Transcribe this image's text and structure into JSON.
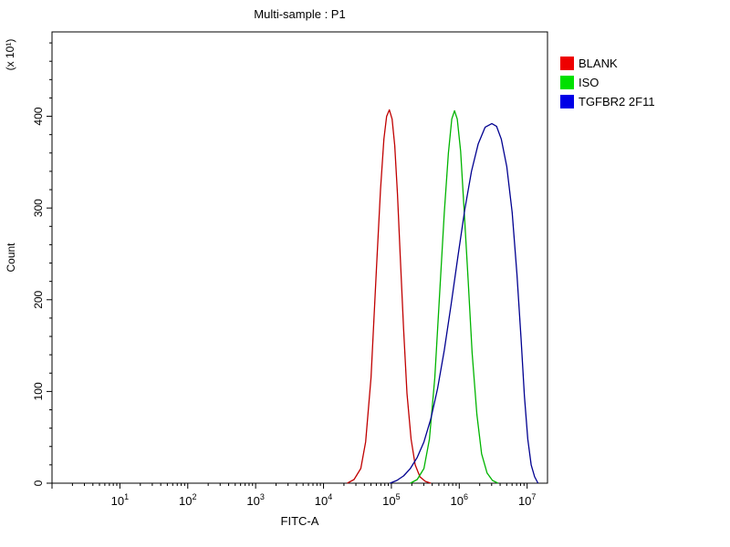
{
  "window": {
    "title": "Multi-sample : P1"
  },
  "chart_data": {
    "type": "line",
    "title": "Multi-sample : P1",
    "xlabel": "FITC-A",
    "ylabel": "Count",
    "y_multiplier_label": "(x 10¹)",
    "x_scale": "log10",
    "xlim_log10": [
      0,
      7.3
    ],
    "ylim": [
      0,
      492
    ],
    "xticks_exponents": [
      1,
      2,
      3,
      4,
      5,
      6,
      7
    ],
    "yticks": [
      0,
      100,
      200,
      300,
      400
    ],
    "y_minor_step": 20,
    "grid": false,
    "legend_position": "top-right-outside",
    "axis_color": "#000000",
    "series": [
      {
        "name": "BLANK",
        "line_color": "#c00000",
        "swatch_color": "#ee0000",
        "peak_log10_fitc": 4.97,
        "peak_count": 407,
        "points": [
          [
            4.35,
            0
          ],
          [
            4.45,
            4
          ],
          [
            4.55,
            16
          ],
          [
            4.62,
            45
          ],
          [
            4.7,
            115
          ],
          [
            4.78,
            235
          ],
          [
            4.84,
            320
          ],
          [
            4.89,
            375
          ],
          [
            4.93,
            400
          ],
          [
            4.97,
            407
          ],
          [
            5.01,
            397
          ],
          [
            5.05,
            368
          ],
          [
            5.09,
            315
          ],
          [
            5.13,
            248
          ],
          [
            5.18,
            168
          ],
          [
            5.23,
            98
          ],
          [
            5.29,
            48
          ],
          [
            5.35,
            20
          ],
          [
            5.42,
            7
          ],
          [
            5.5,
            2
          ],
          [
            5.58,
            0
          ]
        ]
      },
      {
        "name": "ISO",
        "line_color": "#00b400",
        "swatch_color": "#00e000",
        "peak_log10_fitc": 5.93,
        "peak_count": 406,
        "points": [
          [
            5.28,
            0
          ],
          [
            5.38,
            4
          ],
          [
            5.48,
            16
          ],
          [
            5.56,
            48
          ],
          [
            5.64,
            115
          ],
          [
            5.71,
            205
          ],
          [
            5.78,
            295
          ],
          [
            5.84,
            360
          ],
          [
            5.89,
            397
          ],
          [
            5.93,
            406
          ],
          [
            5.97,
            397
          ],
          [
            6.02,
            362
          ],
          [
            6.07,
            300
          ],
          [
            6.13,
            222
          ],
          [
            6.19,
            142
          ],
          [
            6.26,
            75
          ],
          [
            6.33,
            32
          ],
          [
            6.41,
            11
          ],
          [
            6.49,
            3
          ],
          [
            6.57,
            0
          ]
        ]
      },
      {
        "name": "TGFBR2 2F11",
        "line_color": "#000090",
        "swatch_color": "#0000e6",
        "peak_log10_fitc": 6.48,
        "peak_count": 392,
        "points": [
          [
            4.98,
            0
          ],
          [
            5.08,
            3
          ],
          [
            5.18,
            8
          ],
          [
            5.28,
            16
          ],
          [
            5.38,
            28
          ],
          [
            5.48,
            45
          ],
          [
            5.58,
            70
          ],
          [
            5.68,
            103
          ],
          [
            5.78,
            145
          ],
          [
            5.88,
            195
          ],
          [
            5.98,
            247
          ],
          [
            6.08,
            298
          ],
          [
            6.18,
            340
          ],
          [
            6.28,
            370
          ],
          [
            6.38,
            388
          ],
          [
            6.48,
            392
          ],
          [
            6.55,
            389
          ],
          [
            6.62,
            375
          ],
          [
            6.7,
            345
          ],
          [
            6.78,
            295
          ],
          [
            6.85,
            228
          ],
          [
            6.91,
            158
          ],
          [
            6.96,
            95
          ],
          [
            7.01,
            48
          ],
          [
            7.06,
            20
          ],
          [
            7.11,
            7
          ],
          [
            7.16,
            0
          ]
        ]
      }
    ]
  }
}
